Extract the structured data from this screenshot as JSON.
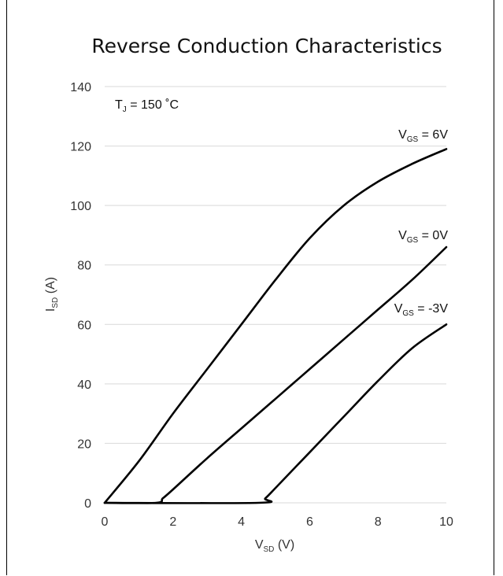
{
  "chart_data": {
    "type": "line",
    "title": "Reverse Conduction Characteristics",
    "xlabel": {
      "main": "V",
      "sub": "SD",
      "suffix": " (V)"
    },
    "ylabel": {
      "main": "I",
      "sub": "SD",
      "suffix": " (A)"
    },
    "xlim": [
      0,
      10
    ],
    "ylim": [
      0,
      140
    ],
    "x_ticks": [
      "0",
      "2",
      "4",
      "6",
      "8",
      "10"
    ],
    "y_ticks": [
      "0",
      "20",
      "40",
      "60",
      "80",
      "100",
      "120",
      "140"
    ],
    "grid": "horizontal",
    "annotation": {
      "main": "T",
      "sub": "J",
      "suffix": " = 150 ˚C"
    },
    "series": [
      {
        "label": {
          "main": "V",
          "sub": "GS",
          "suffix": " = 6V"
        },
        "x": [
          0,
          1,
          2,
          3,
          4,
          5,
          6,
          7,
          8,
          9,
          10
        ],
        "y": [
          0,
          14,
          30,
          45,
          60,
          75,
          89,
          100,
          108,
          114,
          119
        ]
      },
      {
        "label": {
          "main": "V",
          "sub": "GS",
          "suffix": " = 0V"
        },
        "x": [
          0,
          1.5,
          1.7,
          2,
          3,
          4,
          5,
          6,
          7,
          8,
          9,
          10
        ],
        "y": [
          0,
          0,
          1.5,
          4.5,
          15,
          25,
          35,
          45,
          55,
          65,
          75,
          86
        ]
      },
      {
        "label": {
          "main": "V",
          "sub": "GS",
          "suffix": " = -3V"
        },
        "x": [
          0,
          4.5,
          4.7,
          5,
          6,
          7,
          8,
          9,
          10
        ],
        "y": [
          0,
          0,
          1.5,
          5,
          17,
          29,
          41,
          52,
          60
        ]
      }
    ]
  }
}
